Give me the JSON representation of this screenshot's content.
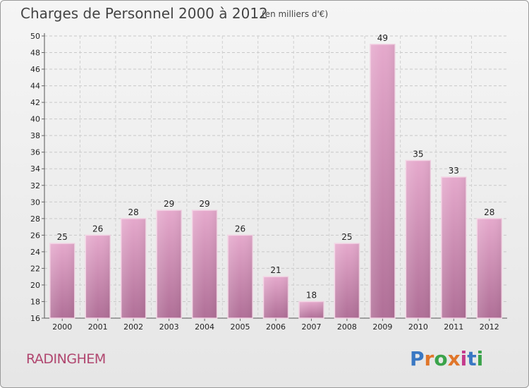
{
  "title": "Charges de Personnel 2000 à 2012",
  "subtitle": "(en milliers d'€)",
  "place_name": "RADINGHEM",
  "logo_text": "Proxiti",
  "colors": {
    "bar_top": "#e5a9cc",
    "bar_bottom": "#b06f97",
    "place": "#b0466f",
    "logo": [
      "#3a78c3",
      "#e0762a",
      "#3aa34a",
      "#e0762a",
      "#c43a8c",
      "#3a78c3",
      "#3aa34a"
    ]
  },
  "chart_data": {
    "type": "bar",
    "categories": [
      "2000",
      "2001",
      "2002",
      "2003",
      "2004",
      "2005",
      "2006",
      "2007",
      "2008",
      "2009",
      "2010",
      "2011",
      "2012"
    ],
    "values": [
      25,
      26,
      28,
      29,
      29,
      26,
      21,
      18,
      25,
      49,
      35,
      33,
      28
    ],
    "ylim": [
      16,
      50
    ],
    "yticks": [
      16,
      18,
      20,
      22,
      24,
      26,
      28,
      30,
      32,
      34,
      36,
      38,
      40,
      42,
      44,
      46,
      48,
      50
    ],
    "grid": true,
    "xlabel": "",
    "ylabel": ""
  }
}
